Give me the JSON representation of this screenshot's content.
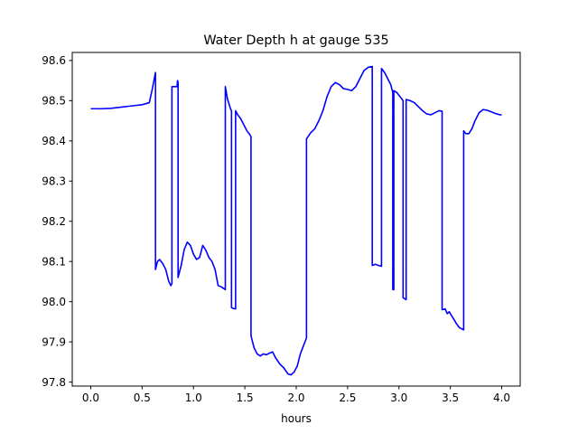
{
  "chart_data": {
    "type": "line",
    "title": "Water Depth h at gauge 535",
    "xlabel": "hours",
    "ylabel": "",
    "xlim": [
      -0.18,
      4.18
    ],
    "ylim": [
      97.79,
      98.62
    ],
    "xticks": [
      0.0,
      0.5,
      1.0,
      1.5,
      2.0,
      2.5,
      3.0,
      3.5,
      4.0
    ],
    "xtick_labels": [
      "0.0",
      "0.5",
      "1.0",
      "1.5",
      "2.0",
      "2.5",
      "3.0",
      "3.5",
      "4.0"
    ],
    "yticks": [
      97.8,
      97.9,
      98.0,
      98.1,
      98.2,
      98.3,
      98.4,
      98.5,
      98.6
    ],
    "ytick_labels": [
      "97.8",
      "97.9",
      "98.0",
      "98.1",
      "98.2",
      "98.3",
      "98.4",
      "98.5",
      "98.6"
    ],
    "grid": false,
    "colors": {
      "line": "#0000ff",
      "axes": "#000000",
      "background": "#ffffff"
    },
    "series": [
      {
        "x": [
          0.0,
          0.1,
          0.2,
          0.3,
          0.4,
          0.5,
          0.57,
          0.6,
          0.63,
          0.63,
          0.65,
          0.67,
          0.7,
          0.73,
          0.76,
          0.78,
          0.79,
          0.79,
          0.82,
          0.84,
          0.845,
          0.85,
          0.85,
          0.88,
          0.91,
          0.94,
          0.97,
          1.0,
          1.03,
          1.06,
          1.09,
          1.12,
          1.15,
          1.18,
          1.21,
          1.24,
          1.27,
          1.31,
          1.31,
          1.33,
          1.36,
          1.37,
          1.37,
          1.39,
          1.41,
          1.41,
          1.43,
          1.46,
          1.49,
          1.52,
          1.55,
          1.56,
          1.56,
          1.59,
          1.62,
          1.65,
          1.68,
          1.71,
          1.74,
          1.77,
          1.8,
          1.84,
          1.88,
          1.92,
          1.95,
          1.98,
          2.01,
          2.04,
          2.07,
          2.1,
          2.1,
          2.14,
          2.18,
          2.22,
          2.26,
          2.3,
          2.34,
          2.38,
          2.42,
          2.46,
          2.5,
          2.54,
          2.58,
          2.62,
          2.66,
          2.7,
          2.74,
          2.74,
          2.77,
          2.8,
          2.83,
          2.83,
          2.86,
          2.89,
          2.92,
          2.94,
          2.94,
          2.95,
          2.95,
          2.98,
          3.01,
          3.04,
          3.04,
          3.07,
          3.07,
          3.11,
          3.15,
          3.19,
          3.23,
          3.27,
          3.31,
          3.35,
          3.39,
          3.42,
          3.42,
          3.45,
          3.47,
          3.49,
          3.5,
          3.53,
          3.56,
          3.59,
          3.63,
          3.63,
          3.65,
          3.68,
          3.71,
          3.74,
          3.78,
          3.82,
          3.86,
          3.9,
          3.94,
          3.98,
          4.0
        ],
        "y": [
          98.48,
          98.48,
          98.481,
          98.484,
          98.487,
          98.49,
          98.495,
          98.53,
          98.57,
          98.08,
          98.1,
          98.105,
          98.095,
          98.08,
          98.05,
          98.04,
          98.045,
          98.535,
          98.535,
          98.535,
          98.55,
          98.545,
          98.06,
          98.09,
          98.13,
          98.148,
          98.14,
          98.118,
          98.105,
          98.11,
          98.14,
          98.128,
          98.11,
          98.1,
          98.08,
          98.04,
          98.037,
          98.03,
          98.535,
          98.505,
          98.48,
          98.475,
          97.985,
          97.983,
          97.982,
          98.475,
          98.465,
          98.455,
          98.44,
          98.425,
          98.415,
          98.41,
          97.915,
          97.885,
          97.87,
          97.865,
          97.87,
          97.868,
          97.872,
          97.875,
          97.86,
          97.845,
          97.835,
          97.82,
          97.818,
          97.825,
          97.84,
          97.87,
          97.89,
          97.91,
          98.405,
          98.42,
          98.43,
          98.45,
          98.475,
          98.51,
          98.535,
          98.545,
          98.54,
          98.53,
          98.528,
          98.525,
          98.535,
          98.555,
          98.575,
          98.583,
          98.585,
          98.09,
          98.093,
          98.09,
          98.088,
          98.58,
          98.57,
          98.555,
          98.54,
          98.52,
          98.03,
          98.03,
          98.525,
          98.52,
          98.51,
          98.5,
          98.01,
          98.005,
          98.503,
          98.5,
          98.495,
          98.485,
          98.475,
          98.467,
          98.465,
          98.47,
          98.475,
          98.474,
          97.98,
          97.982,
          97.97,
          97.975,
          97.97,
          97.958,
          97.945,
          97.935,
          97.93,
          98.425,
          98.418,
          98.418,
          98.43,
          98.45,
          98.47,
          98.478,
          98.476,
          98.472,
          98.468,
          98.465,
          98.465
        ]
      }
    ]
  }
}
